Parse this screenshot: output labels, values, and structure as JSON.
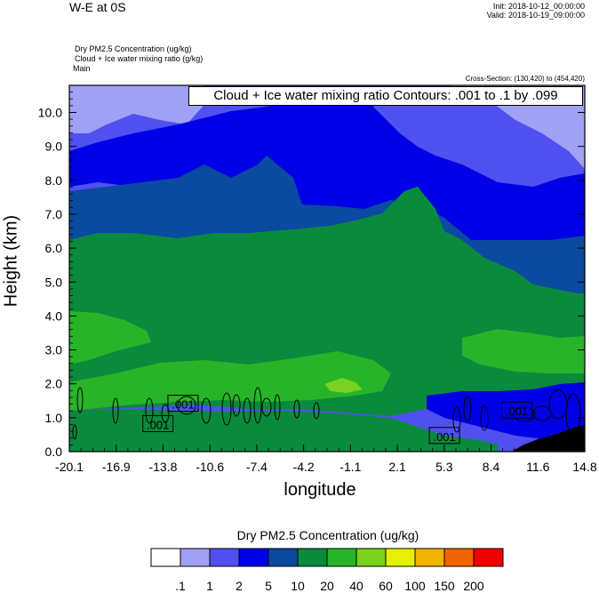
{
  "header": {
    "title": "W-E at 0S",
    "init": "Init: 2018-10-12_00:00:00",
    "valid": "Valid: 2018-10-19_09:00:00",
    "fields": [
      "Dry PM2.5 Concentration   (ug/kg)",
      "Cloud + Ice water mixing ratio   (g/kg)",
      "Main"
    ],
    "cross_section": "Cross-Section: (130,420) to (454,420)"
  },
  "contour_label": "Cloud + Ice water mixing ratio Contours: .001 to .1 by .099",
  "colors": {
    "c01": "#ffffff",
    "c1": "#a0a0f5",
    "c2": "#5050f0",
    "c5": "#0000e6",
    "c10": "#0a4aa0",
    "c20": "#0a8a3c",
    "c40": "#28b428",
    "c60": "#78d21e",
    "c100": "#e6f000",
    "c150": "#f0b400",
    "c200": "#f06400",
    "cmax": "#f00000",
    "terrain": "#000000"
  },
  "chart_data": {
    "type": "heatmap",
    "xlabel": "longitude",
    "ylabel": "Height (km)",
    "xlim": [
      -20.1,
      14.8
    ],
    "ylim": [
      0.0,
      10.8
    ],
    "x_ticks": [
      "-20.1",
      "-16.9",
      "-13.8",
      "-10.6",
      "-7.4",
      "-4.2",
      "-1.1",
      "2.1",
      "5.3",
      "8.4",
      "11.6",
      "14.8"
    ],
    "y_ticks": [
      "0.0",
      "1.0",
      "2.0",
      "3.0",
      "4.0",
      "5.0",
      "6.0",
      "7.0",
      "8.0",
      "9.0",
      "10.0"
    ],
    "colorbar": {
      "title": "Dry PM2.5 Concentration  (ug/kg)",
      "levels": [
        ".1",
        "1",
        "2",
        "5",
        "10",
        "20",
        "40",
        "60",
        "100",
        "150",
        "200"
      ],
      "colors": [
        "#ffffff",
        "#a0a0f5",
        "#5050f0",
        "#0000e6",
        "#0a4aa0",
        "#0a8a3c",
        "#28b428",
        "#78d21e",
        "#e6f000",
        "#f0b400",
        "#f06400",
        "#f00000"
      ]
    },
    "contour_labels": [
      {
        "text": ".001",
        "x": -14.1,
        "y": 0.8
      },
      {
        "text": ".001",
        "x": -12.4,
        "y": 1.4
      },
      {
        "text": ".001",
        "x": 5.3,
        "y": 0.45
      },
      {
        "text": ".001",
        "x": 10.2,
        "y": 1.2
      }
    ]
  }
}
